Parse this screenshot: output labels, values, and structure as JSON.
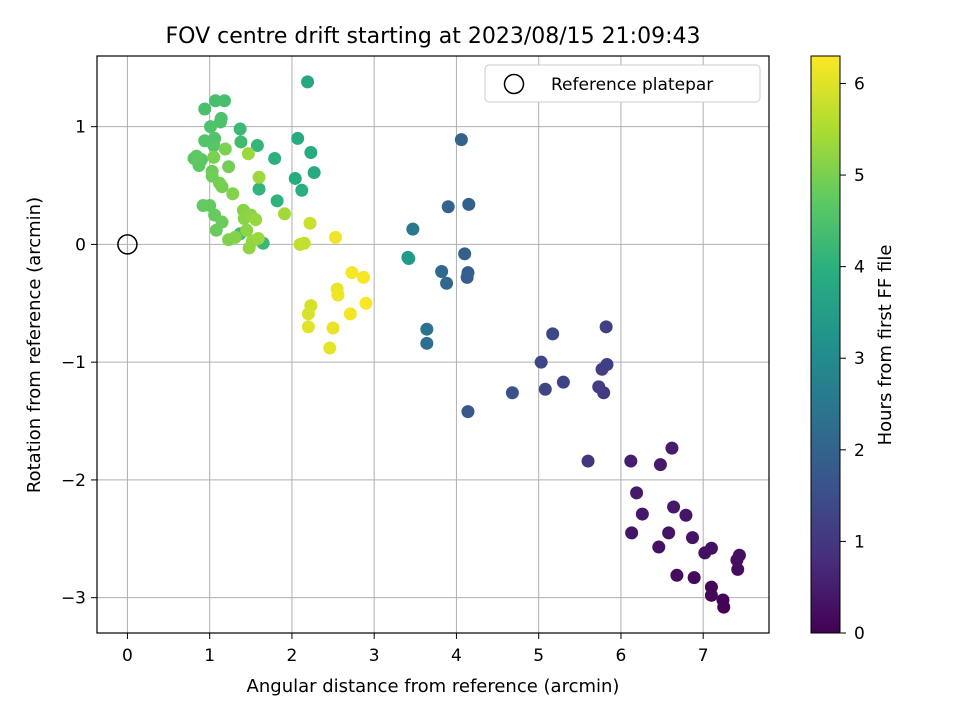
{
  "chart_data": {
    "type": "scatter",
    "title": "FOV centre drift starting at 2023/08/15 21:09:43",
    "xlabel": "Angular distance from reference (arcmin)",
    "ylabel": "Rotation from reference (arcmin)",
    "xlim": [
      -0.37,
      7.8
    ],
    "ylim": [
      -3.3,
      1.6
    ],
    "x_ticks": [
      "0",
      "1",
      "2",
      "3",
      "4",
      "5",
      "6",
      "7"
    ],
    "y_ticks": [
      "−3",
      "−2",
      "−1",
      "0",
      "1"
    ],
    "grid": true,
    "legend": {
      "placement": "top-right",
      "entries": [
        "Reference platepar"
      ]
    },
    "reference_point": {
      "x": 0,
      "y": 0
    },
    "colorbar": {
      "label": "Hours from first FF file",
      "range": [
        0,
        6.3
      ],
      "ticks": [
        "0",
        "1",
        "2",
        "3",
        "4",
        "5",
        "6"
      ],
      "colormap": "viridis"
    },
    "points": [
      {
        "x": 7.25,
        "y": -3.08,
        "c": 0.05
      },
      {
        "x": 7.24,
        "y": -3.02,
        "c": 0.08
      },
      {
        "x": 7.1,
        "y": -2.98,
        "c": 0.1
      },
      {
        "x": 7.1,
        "y": -2.91,
        "c": 0.13
      },
      {
        "x": 6.89,
        "y": -2.83,
        "c": 0.16
      },
      {
        "x": 6.68,
        "y": -2.81,
        "c": 0.18
      },
      {
        "x": 7.42,
        "y": -2.76,
        "c": 0.2
      },
      {
        "x": 7.41,
        "y": -2.68,
        "c": 0.22
      },
      {
        "x": 7.44,
        "y": -2.64,
        "c": 0.24
      },
      {
        "x": 7.02,
        "y": -2.62,
        "c": 0.26
      },
      {
        "x": 7.1,
        "y": -2.58,
        "c": 0.28
      },
      {
        "x": 6.46,
        "y": -2.57,
        "c": 0.3
      },
      {
        "x": 6.87,
        "y": -2.49,
        "c": 0.32
      },
      {
        "x": 6.58,
        "y": -2.45,
        "c": 0.34
      },
      {
        "x": 6.13,
        "y": -2.45,
        "c": 0.36
      },
      {
        "x": 6.79,
        "y": -2.3,
        "c": 0.38
      },
      {
        "x": 6.26,
        "y": -2.29,
        "c": 0.4
      },
      {
        "x": 6.64,
        "y": -2.23,
        "c": 0.42
      },
      {
        "x": 6.19,
        "y": -2.11,
        "c": 0.44
      },
      {
        "x": 6.48,
        "y": -1.87,
        "c": 0.46
      },
      {
        "x": 6.12,
        "y": -1.84,
        "c": 0.48
      },
      {
        "x": 6.62,
        "y": -1.73,
        "c": 0.5
      },
      {
        "x": 5.6,
        "y": -1.84,
        "c": 0.95
      },
      {
        "x": 5.79,
        "y": -1.26,
        "c": 1.05
      },
      {
        "x": 5.73,
        "y": -1.21,
        "c": 1.1
      },
      {
        "x": 5.77,
        "y": -1.06,
        "c": 1.15
      },
      {
        "x": 5.83,
        "y": -1.02,
        "c": 1.18
      },
      {
        "x": 5.82,
        "y": -0.7,
        "c": 1.22
      },
      {
        "x": 5.3,
        "y": -1.17,
        "c": 1.25
      },
      {
        "x": 5.08,
        "y": -1.23,
        "c": 1.3
      },
      {
        "x": 5.03,
        "y": -1.0,
        "c": 1.32
      },
      {
        "x": 5.17,
        "y": -0.76,
        "c": 1.36
      },
      {
        "x": 4.68,
        "y": -1.26,
        "c": 1.55
      },
      {
        "x": 4.14,
        "y": -1.42,
        "c": 1.75
      },
      {
        "x": 4.13,
        "y": -0.28,
        "c": 1.85
      },
      {
        "x": 4.14,
        "y": -0.24,
        "c": 1.88
      },
      {
        "x": 4.1,
        "y": -0.08,
        "c": 1.92
      },
      {
        "x": 4.15,
        "y": 0.34,
        "c": 1.95
      },
      {
        "x": 3.9,
        "y": 0.32,
        "c": 2.0
      },
      {
        "x": 4.06,
        "y": 0.89,
        "c": 2.05
      },
      {
        "x": 3.88,
        "y": -0.33,
        "c": 2.1
      },
      {
        "x": 3.82,
        "y": -0.23,
        "c": 2.15
      },
      {
        "x": 3.64,
        "y": -0.84,
        "c": 2.3
      },
      {
        "x": 3.64,
        "y": -0.72,
        "c": 2.35
      },
      {
        "x": 3.47,
        "y": 0.13,
        "c": 2.5
      },
      {
        "x": 3.41,
        "y": -0.11,
        "c": 3.3
      },
      {
        "x": 3.42,
        "y": -0.12,
        "c": 3.4
      },
      {
        "x": 2.19,
        "y": 1.38,
        "c": 3.75
      },
      {
        "x": 2.27,
        "y": 0.61,
        "c": 3.8
      },
      {
        "x": 2.23,
        "y": 0.78,
        "c": 3.85
      },
      {
        "x": 2.07,
        "y": 0.9,
        "c": 3.88
      },
      {
        "x": 2.04,
        "y": 0.56,
        "c": 3.9
      },
      {
        "x": 2.12,
        "y": 0.46,
        "c": 3.95
      },
      {
        "x": 1.79,
        "y": 0.73,
        "c": 4.0
      },
      {
        "x": 1.82,
        "y": 0.37,
        "c": 4.05
      },
      {
        "x": 1.6,
        "y": 0.47,
        "c": 4.1
      },
      {
        "x": 1.58,
        "y": 0.84,
        "c": 4.15
      },
      {
        "x": 1.65,
        "y": 0.01,
        "c": 4.2
      },
      {
        "x": 1.37,
        "y": 0.98,
        "c": 4.25
      },
      {
        "x": 1.38,
        "y": 0.87,
        "c": 4.3
      },
      {
        "x": 1.37,
        "y": 0.09,
        "c": 4.35
      },
      {
        "x": 1.07,
        "y": 1.22,
        "c": 4.4
      },
      {
        "x": 1.18,
        "y": 1.22,
        "c": 4.42
      },
      {
        "x": 0.94,
        "y": 1.15,
        "c": 4.45
      },
      {
        "x": 1.14,
        "y": 1.07,
        "c": 4.48
      },
      {
        "x": 1.13,
        "y": 1.04,
        "c": 4.5
      },
      {
        "x": 1.01,
        "y": 1.0,
        "c": 4.52
      },
      {
        "x": 1.06,
        "y": 0.9,
        "c": 4.55
      },
      {
        "x": 0.94,
        "y": 0.88,
        "c": 4.57
      },
      {
        "x": 1.05,
        "y": 0.84,
        "c": 4.6
      },
      {
        "x": 0.81,
        "y": 0.73,
        "c": 4.62
      },
      {
        "x": 0.9,
        "y": 0.72,
        "c": 4.65
      },
      {
        "x": 0.86,
        "y": 0.7,
        "c": 4.67
      },
      {
        "x": 0.87,
        "y": 0.67,
        "c": 4.7
      },
      {
        "x": 0.84,
        "y": 0.75,
        "c": 4.72
      },
      {
        "x": 0.92,
        "y": 0.33,
        "c": 4.75
      },
      {
        "x": 1.0,
        "y": 0.33,
        "c": 4.78
      },
      {
        "x": 1.06,
        "y": 0.25,
        "c": 4.8
      },
      {
        "x": 1.08,
        "y": 0.12,
        "c": 4.82
      },
      {
        "x": 1.15,
        "y": 0.19,
        "c": 4.85
      },
      {
        "x": 1.03,
        "y": 0.62,
        "c": 4.88
      },
      {
        "x": 1.03,
        "y": 0.58,
        "c": 4.9
      },
      {
        "x": 1.23,
        "y": 0.66,
        "c": 4.93
      },
      {
        "x": 1.12,
        "y": 0.52,
        "c": 4.95
      },
      {
        "x": 1.15,
        "y": 0.49,
        "c": 4.97
      },
      {
        "x": 1.05,
        "y": 0.74,
        "c": 5.0
      },
      {
        "x": 1.19,
        "y": 0.81,
        "c": 5.02
      },
      {
        "x": 1.23,
        "y": 0.04,
        "c": 5.05
      },
      {
        "x": 1.28,
        "y": 0.43,
        "c": 5.08
      },
      {
        "x": 1.31,
        "y": 0.06,
        "c": 5.1
      },
      {
        "x": 1.41,
        "y": 0.29,
        "c": 5.13
      },
      {
        "x": 1.42,
        "y": 0.22,
        "c": 5.15
      },
      {
        "x": 1.45,
        "y": 0.12,
        "c": 5.18
      },
      {
        "x": 1.5,
        "y": 0.25,
        "c": 5.2
      },
      {
        "x": 1.48,
        "y": -0.03,
        "c": 5.23
      },
      {
        "x": 1.52,
        "y": 0.03,
        "c": 5.25
      },
      {
        "x": 1.56,
        "y": 0.21,
        "c": 5.28
      },
      {
        "x": 1.59,
        "y": 0.05,
        "c": 5.3
      },
      {
        "x": 1.47,
        "y": 0.77,
        "c": 5.33
      },
      {
        "x": 1.6,
        "y": 0.57,
        "c": 5.36
      },
      {
        "x": 1.91,
        "y": 0.26,
        "c": 5.4
      },
      {
        "x": 2.1,
        "y": 0.0,
        "c": 5.7
      },
      {
        "x": 2.15,
        "y": 0.01,
        "c": 5.75
      },
      {
        "x": 2.22,
        "y": 0.18,
        "c": 5.8
      },
      {
        "x": 2.23,
        "y": -0.52,
        "c": 5.9
      },
      {
        "x": 2.2,
        "y": -0.59,
        "c": 5.95
      },
      {
        "x": 2.2,
        "y": -0.7,
        "c": 6.0
      },
      {
        "x": 2.46,
        "y": -0.88,
        "c": 6.05
      },
      {
        "x": 2.5,
        "y": -0.71,
        "c": 6.1
      },
      {
        "x": 2.55,
        "y": -0.38,
        "c": 6.12
      },
      {
        "x": 2.56,
        "y": -0.43,
        "c": 6.15
      },
      {
        "x": 2.53,
        "y": 0.06,
        "c": 6.18
      },
      {
        "x": 2.71,
        "y": -0.59,
        "c": 6.2
      },
      {
        "x": 2.73,
        "y": -0.24,
        "c": 6.22
      },
      {
        "x": 2.87,
        "y": -0.28,
        "c": 6.24
      },
      {
        "x": 2.9,
        "y": -0.5,
        "c": 6.26
      }
    ]
  }
}
